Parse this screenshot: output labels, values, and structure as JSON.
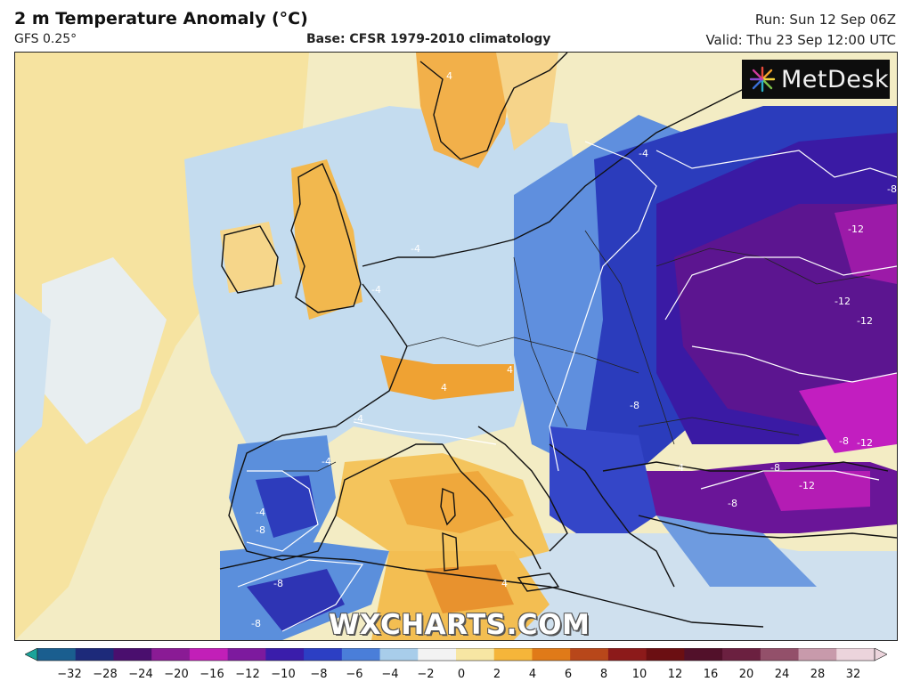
{
  "header": {
    "title": "2 m Temperature Anomaly (°C)",
    "model": "GFS 0.25°",
    "base": "Base: CFSR 1979-2010 climatology",
    "run": "Run: Sun 12 Sep 06Z",
    "valid": "Valid: Thu 23 Sep 12:00 UTC"
  },
  "branding": {
    "logo_text": "MetDesk",
    "watermark": "WXCHARTS.COM"
  },
  "contour_labels": [
    "-4",
    "-4",
    "-4",
    "-4",
    "-4",
    "-4",
    "-4",
    "4",
    "4",
    "4",
    "4",
    "-8",
    "-8",
    "-8",
    "-8",
    "-8",
    "-8",
    "-8",
    "-8",
    "-12",
    "-12",
    "-12",
    "-12",
    "-12"
  ],
  "colorbar": {
    "ticks": [
      "-32",
      "-28",
      "-24",
      "-20",
      "-16",
      "-12",
      "-10",
      "-8",
      "-6",
      "-4",
      "-2",
      "0",
      "2",
      "4",
      "6",
      "8",
      "10",
      "12",
      "16",
      "20",
      "24",
      "28",
      "32"
    ],
    "colors": [
      "#1aa39a",
      "#1a5e8f",
      "#1d2a7a",
      "#4a0f6e",
      "#8a1b95",
      "#c21fb8",
      "#7d1a9e",
      "#3a1dab",
      "#2c3fc4",
      "#4a7ed9",
      "#a8cdea",
      "#f3f3f3",
      "#f7e6a3",
      "#f5b53a",
      "#e07a18",
      "#b8471a",
      "#8c1a1a",
      "#6b0f12",
      "#52102a",
      "#6b2040",
      "#93506a",
      "#c89aab",
      "#ecd4dc"
    ]
  },
  "map": {
    "colors": {
      "ocean_warm": "#f6e6a8",
      "ocean_pale": "#f1f0dd",
      "light_blue": "#bcd8ee",
      "blue": "#6a9ee0",
      "deep_blue": "#2838b8",
      "indigo": "#301c9c",
      "purple": "#5b148e",
      "magenta": "#b01ab0",
      "orange": "#f0a640",
      "yellow": "#f6d06a"
    }
  }
}
